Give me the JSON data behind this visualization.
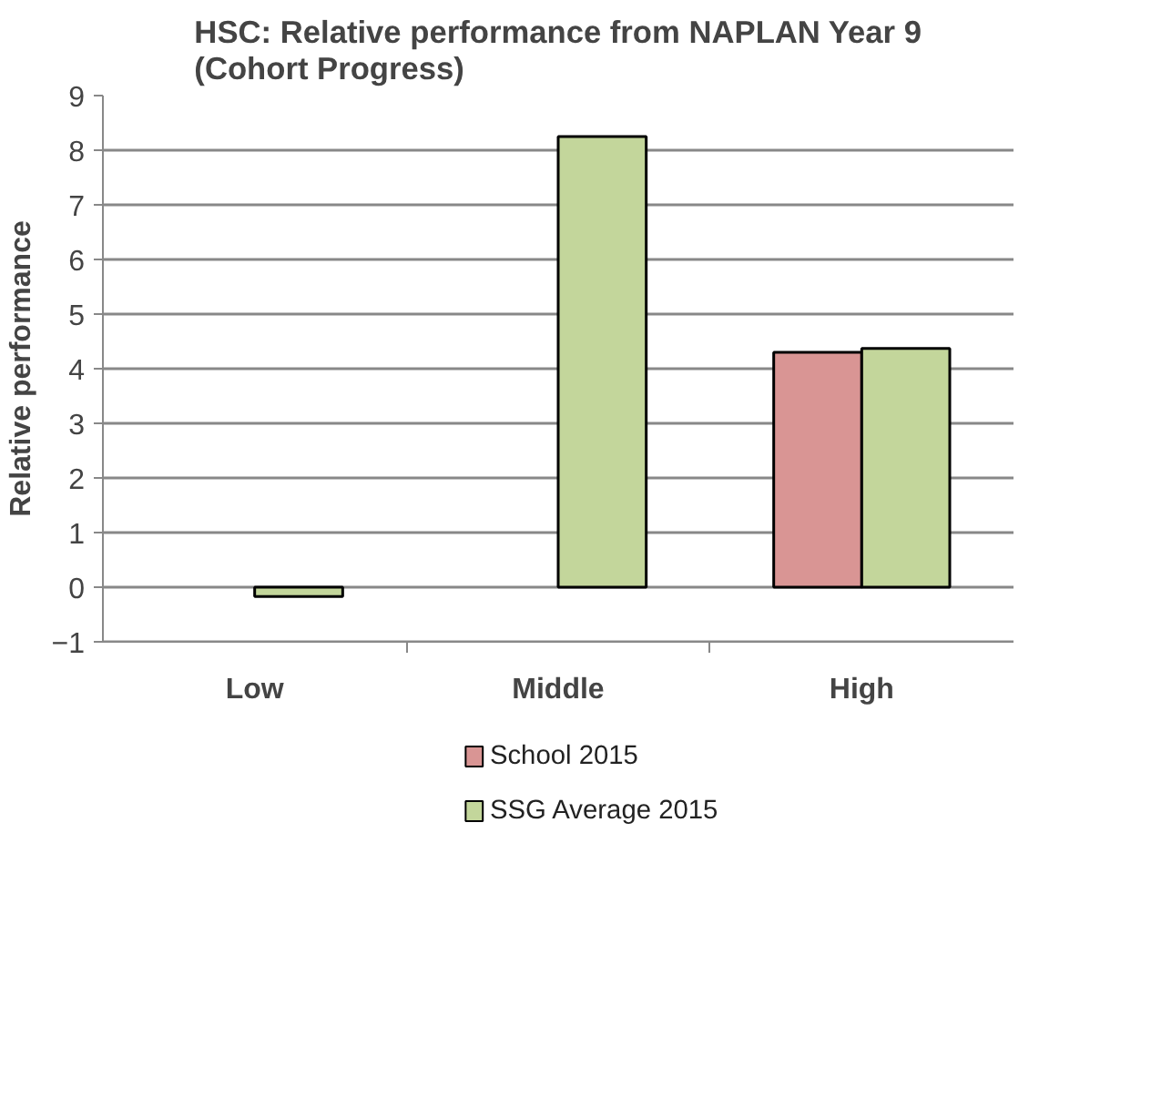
{
  "chart_data": {
    "type": "bar",
    "title": "HSC: Relative performance from NAPLAN Year 9\n(Cohort Progress)",
    "ylabel": "Relative performance",
    "categories": [
      "Low",
      "Middle",
      "High"
    ],
    "series": [
      {
        "name": "School 2015",
        "color": "#d99594",
        "values": [
          null,
          null,
          4.3
        ]
      },
      {
        "name": "SSG Average 2015",
        "color": "#c3d69b",
        "values": [
          -0.17,
          8.25,
          4.37
        ]
      }
    ],
    "ylim": [
      -1,
      9
    ],
    "yticks": [
      -1,
      0,
      1,
      2,
      3,
      4,
      5,
      6,
      7,
      8,
      9
    ],
    "grid": "y",
    "legend": "bottom"
  }
}
